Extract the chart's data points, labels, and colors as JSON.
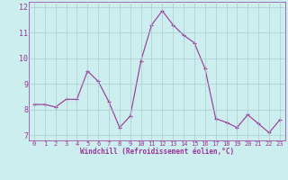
{
  "x": [
    0,
    1,
    2,
    3,
    4,
    5,
    6,
    7,
    8,
    9,
    10,
    11,
    12,
    13,
    14,
    15,
    16,
    17,
    18,
    19,
    20,
    21,
    22,
    23
  ],
  "y": [
    8.2,
    8.2,
    8.1,
    8.4,
    8.4,
    9.5,
    9.1,
    8.3,
    7.3,
    7.75,
    9.9,
    11.3,
    11.85,
    11.3,
    10.9,
    10.6,
    9.6,
    7.65,
    7.5,
    7.3,
    7.8,
    7.45,
    7.1,
    7.6
  ],
  "line_color": "#993399",
  "marker": "+",
  "bg_color": "#cceeee",
  "grid_color": "#aacccc",
  "text_color": "#993399",
  "xlabel": "Windchill (Refroidissement éolien,°C)",
  "ylim": [
    6.8,
    12.2
  ],
  "xlim": [
    -0.5,
    23.5
  ],
  "yticks": [
    7,
    8,
    9,
    10,
    11,
    12
  ],
  "xticks": [
    0,
    1,
    2,
    3,
    4,
    5,
    6,
    7,
    8,
    9,
    10,
    11,
    12,
    13,
    14,
    15,
    16,
    17,
    18,
    19,
    20,
    21,
    22,
    23
  ]
}
